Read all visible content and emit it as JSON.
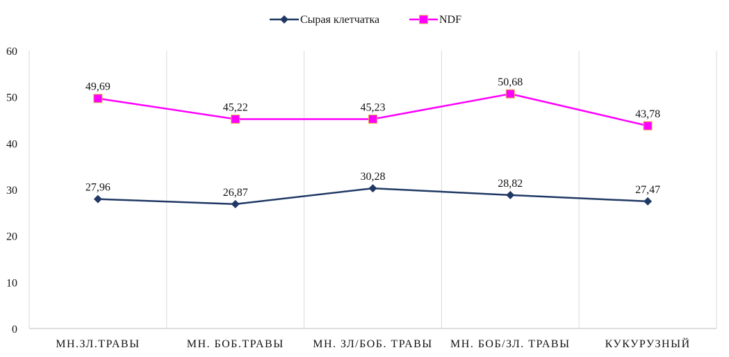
{
  "chart_data": {
    "type": "line",
    "title": "",
    "xlabel": "",
    "ylabel": "",
    "categories": [
      "МН.ЗЛ.ТРАВЫ",
      "МН. БОБ.ТРАВЫ",
      "МН. ЗЛ/БОБ. ТРАВЫ",
      "МН. БОБ/ЗЛ. ТРАВЫ",
      "КУКУРУЗНЫЙ"
    ],
    "series": [
      {
        "name": "Сырая клетчатка",
        "values": [
          27.96,
          26.87,
          30.28,
          28.82,
          27.47
        ],
        "labels": [
          "27,96",
          "26,87",
          "30,28",
          "28,82",
          "27,47"
        ],
        "color": "#1f3864",
        "marker": "diamond"
      },
      {
        "name": "NDF",
        "values": [
          49.69,
          45.22,
          45.23,
          50.68,
          43.78
        ],
        "labels": [
          "49,69",
          "45,22",
          "45,23",
          "50,68",
          "43,78"
        ],
        "color": "#ff00ff",
        "marker": "square"
      }
    ],
    "ylim": [
      0,
      60
    ],
    "yticks": [
      "0",
      "10",
      "20",
      "30",
      "40",
      "50",
      "60"
    ],
    "grid": "vertical",
    "legend": "top-center"
  }
}
